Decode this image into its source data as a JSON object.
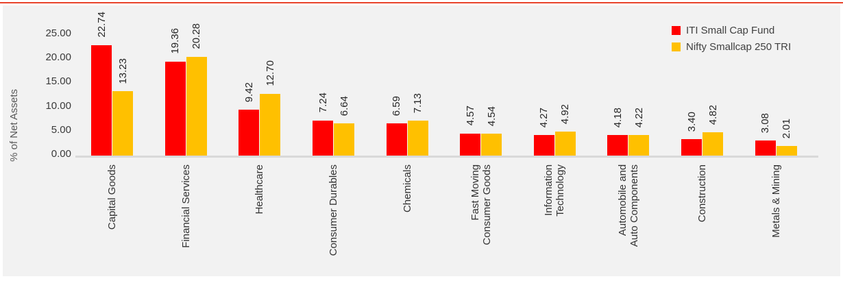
{
  "colors": {
    "top_rule": "#E8432B",
    "plot_background": "#F2F2F2",
    "axis_line": "#D9D9D9"
  },
  "chart_data": {
    "type": "bar",
    "title": "",
    "ylabel": "% of Net Assets",
    "ylim": [
      0,
      27
    ],
    "yticks": [
      "25.00",
      "20.00",
      "15.00",
      "10.00",
      "5.00",
      "0.00"
    ],
    "grid": false,
    "legend_position": "top-right",
    "categories": [
      "Capital Goods",
      "Financial Services",
      "Healthcare",
      "Consumer Durables",
      "Chemicals",
      "Fast Moving\nConsumer Goods",
      "Information\nTechnology",
      "Automobile and\nAuto Components",
      "Construction",
      "Metals & Mining"
    ],
    "series": [
      {
        "name": "ITI Small Cap Fund",
        "color": "#FF0000",
        "values": [
          22.74,
          19.36,
          9.42,
          7.24,
          6.59,
          4.57,
          4.27,
          4.18,
          3.4,
          3.08
        ]
      },
      {
        "name": "Nifty Smallcap 250 TRI",
        "color": "#FFC000",
        "values": [
          13.23,
          20.28,
          12.7,
          6.64,
          7.13,
          4.54,
          4.92,
          4.22,
          4.82,
          2.01
        ]
      }
    ],
    "value_labels": [
      [
        "22.74",
        "19.36",
        "9.42",
        "7.24",
        "6.59",
        "4.57",
        "4.27",
        "4.18",
        "3.40",
        "3.08"
      ],
      [
        "13.23",
        "20.28",
        "12.70",
        "6.64",
        "7.13",
        "4.54",
        "4.92",
        "4.22",
        "4.82",
        "2.01"
      ]
    ]
  }
}
